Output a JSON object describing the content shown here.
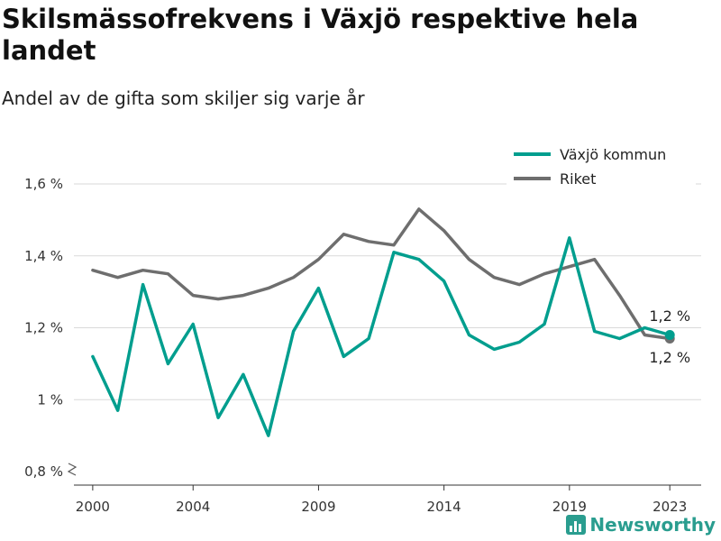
{
  "header": {
    "title": "Skilsmässofrekvens i Växjö respektive hela landet",
    "subtitle": "Andel av de gifta som skiljer sig varje år"
  },
  "brand": {
    "name": "Newsworthy"
  },
  "colors": {
    "vaxjo": "#009e8e",
    "riket": "#6e6e6e",
    "grid": "#d9d9d9",
    "brand": "#2a9d8f"
  },
  "chart_data": {
    "type": "line",
    "title": "Skilsmässofrekvens i Växjö respektive hela landet",
    "subtitle": "Andel av de gifta som skiljer sig varje år",
    "x": [
      2000,
      2001,
      2002,
      2003,
      2004,
      2005,
      2006,
      2007,
      2008,
      2009,
      2010,
      2011,
      2012,
      2013,
      2014,
      2015,
      2016,
      2017,
      2018,
      2019,
      2020,
      2021,
      2022,
      2023
    ],
    "series": [
      {
        "name": "Växjö kommun",
        "color": "#009e8e",
        "values": [
          1.12,
          0.97,
          1.32,
          1.1,
          1.21,
          0.95,
          1.07,
          0.9,
          1.19,
          1.31,
          1.12,
          1.17,
          1.41,
          1.39,
          1.33,
          1.18,
          1.14,
          1.16,
          1.21,
          1.45,
          1.19,
          1.17,
          1.2,
          1.18
        ],
        "end_label": "1,2 %"
      },
      {
        "name": "Riket",
        "color": "#6e6e6e",
        "values": [
          1.36,
          1.34,
          1.36,
          1.35,
          1.29,
          1.28,
          1.29,
          1.31,
          1.34,
          1.39,
          1.46,
          1.44,
          1.43,
          1.53,
          1.47,
          1.39,
          1.34,
          1.32,
          1.35,
          1.37,
          1.39,
          1.29,
          1.18,
          1.17
        ],
        "end_label": "1,2 %"
      }
    ],
    "ylim": [
      0.8,
      1.6
    ],
    "yticks": [
      0.8,
      1.0,
      1.2,
      1.4,
      1.6
    ],
    "ytick_labels": [
      "0,8 %",
      "1 %",
      "1,2 %",
      "1,4 %",
      "1,6 %"
    ],
    "xticks": [
      2000,
      2004,
      2009,
      2014,
      2019,
      2023
    ],
    "xtick_labels": [
      "2000",
      "2004",
      "2009",
      "2014",
      "2019",
      "2023"
    ],
    "xlabel": "",
    "ylabel": "",
    "grid": true,
    "legend_position": "top-right"
  }
}
